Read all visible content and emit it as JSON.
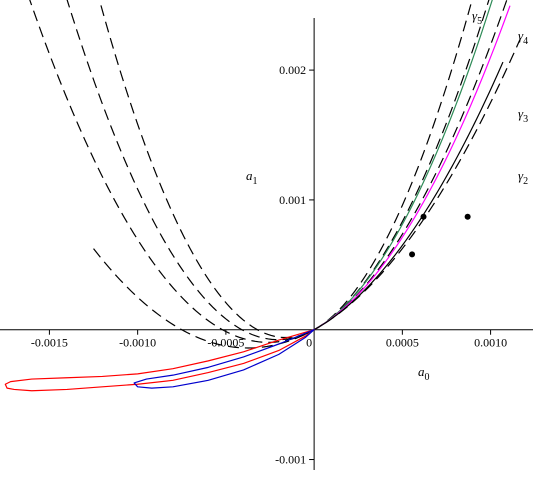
{
  "chart_data": {
    "type": "line",
    "title": "",
    "xlabel": "a",
    "xlabel_sub": "0",
    "ylabel": "a",
    "ylabel_sub": "1",
    "xlim": [
      -0.00178,
      0.00128
    ],
    "ylim": [
      -0.00115,
      0.00254
    ],
    "grid": false,
    "x_ticks": [
      {
        "value": -0.0015,
        "label": "-0.0015"
      },
      {
        "value": -0.001,
        "label": "-0.0010"
      },
      {
        "value": -0.0005,
        "label": "-0.0005"
      },
      {
        "value": 0,
        "label": "0"
      },
      {
        "value": 0.0005,
        "label": "0.0005"
      },
      {
        "value": 0.001,
        "label": "0.0010"
      }
    ],
    "y_ticks": [
      {
        "value": 0.002,
        "label": "0.002"
      },
      {
        "value": 0.001,
        "label": "0.001"
      },
      {
        "value": -0.001,
        "label": "-0.001"
      }
    ],
    "dashed_curves": [
      {
        "label": "γ",
        "label_sub": "5",
        "k": 2333,
        "x_min": -0.0018,
        "x_max": 0.00103,
        "color": "#000000"
      },
      {
        "label": "γ",
        "label_sub": "4",
        "k": 1833,
        "x_min": -0.0018,
        "x_max": 0.00117,
        "color": "#000000"
      },
      {
        "label": "γ",
        "label_sub": "3",
        "k": 1444,
        "x_min": -0.0018,
        "x_max": 0.00117,
        "color": "#000000"
      },
      {
        "label": "γ",
        "label_sub": "2",
        "k": 1000,
        "x_min": -0.00125,
        "x_max": 0.00117,
        "color": "#000000"
      }
    ],
    "solid_curves": [
      {
        "color": "#2e8b57",
        "k": 1750,
        "x_min": 0,
        "x_max": 0.00111
      },
      {
        "color": "#ff00ff",
        "k": 1350,
        "x_min": 0,
        "x_max": 0.00111
      },
      {
        "color": "#000000",
        "k": 1100,
        "x_min": 0,
        "x_max": 0.00107
      }
    ],
    "closed_curves": [
      {
        "color": "#ff0000",
        "points": [
          [
            0,
            0
          ],
          [
            -0.0002,
            -8e-05
          ],
          [
            -0.0004,
            -0.00017
          ],
          [
            -0.0006,
            -0.00024
          ],
          [
            -0.0008,
            -0.0003
          ],
          [
            -0.001,
            -0.00034
          ],
          [
            -0.0012,
            -0.00036
          ],
          [
            -0.0014,
            -0.00037
          ],
          [
            -0.0016,
            -0.00038
          ],
          [
            -0.00172,
            -0.0004
          ],
          [
            -0.00175,
            -0.00042
          ],
          [
            -0.00174,
            -0.00045
          ],
          [
            -0.0017,
            -0.00046
          ],
          [
            -0.0016,
            -0.00047
          ],
          [
            -0.0014,
            -0.00046
          ],
          [
            -0.0012,
            -0.00044
          ],
          [
            -0.001,
            -0.00042
          ],
          [
            -0.0008,
            -0.00039
          ],
          [
            -0.0006,
            -0.00033
          ],
          [
            -0.0004,
            -0.00026
          ],
          [
            -0.0002,
            -0.00016
          ],
          [
            -5e-05,
            -5e-05
          ],
          [
            0,
            0
          ]
        ]
      },
      {
        "color": "#0000cd",
        "points": [
          [
            0,
            0
          ],
          [
            -0.0002,
            -0.00011
          ],
          [
            -0.0004,
            -0.00021
          ],
          [
            -0.0006,
            -0.00029
          ],
          [
            -0.0008,
            -0.00035
          ],
          [
            -0.00095,
            -0.00038
          ],
          [
            -0.00102,
            -0.00041
          ],
          [
            -0.001,
            -0.00044
          ],
          [
            -0.00092,
            -0.00045
          ],
          [
            -0.0008,
            -0.00044
          ],
          [
            -0.0006,
            -0.00039
          ],
          [
            -0.0004,
            -0.00031
          ],
          [
            -0.0002,
            -0.00019
          ],
          [
            -5e-05,
            -6e-05
          ],
          [
            0,
            0
          ]
        ]
      }
    ],
    "points": [
      {
        "x": 0.00062,
        "y": 0.00087
      },
      {
        "x": 0.000555,
        "y": 0.00058
      },
      {
        "x": 0.00087,
        "y": 0.00087
      }
    ]
  }
}
